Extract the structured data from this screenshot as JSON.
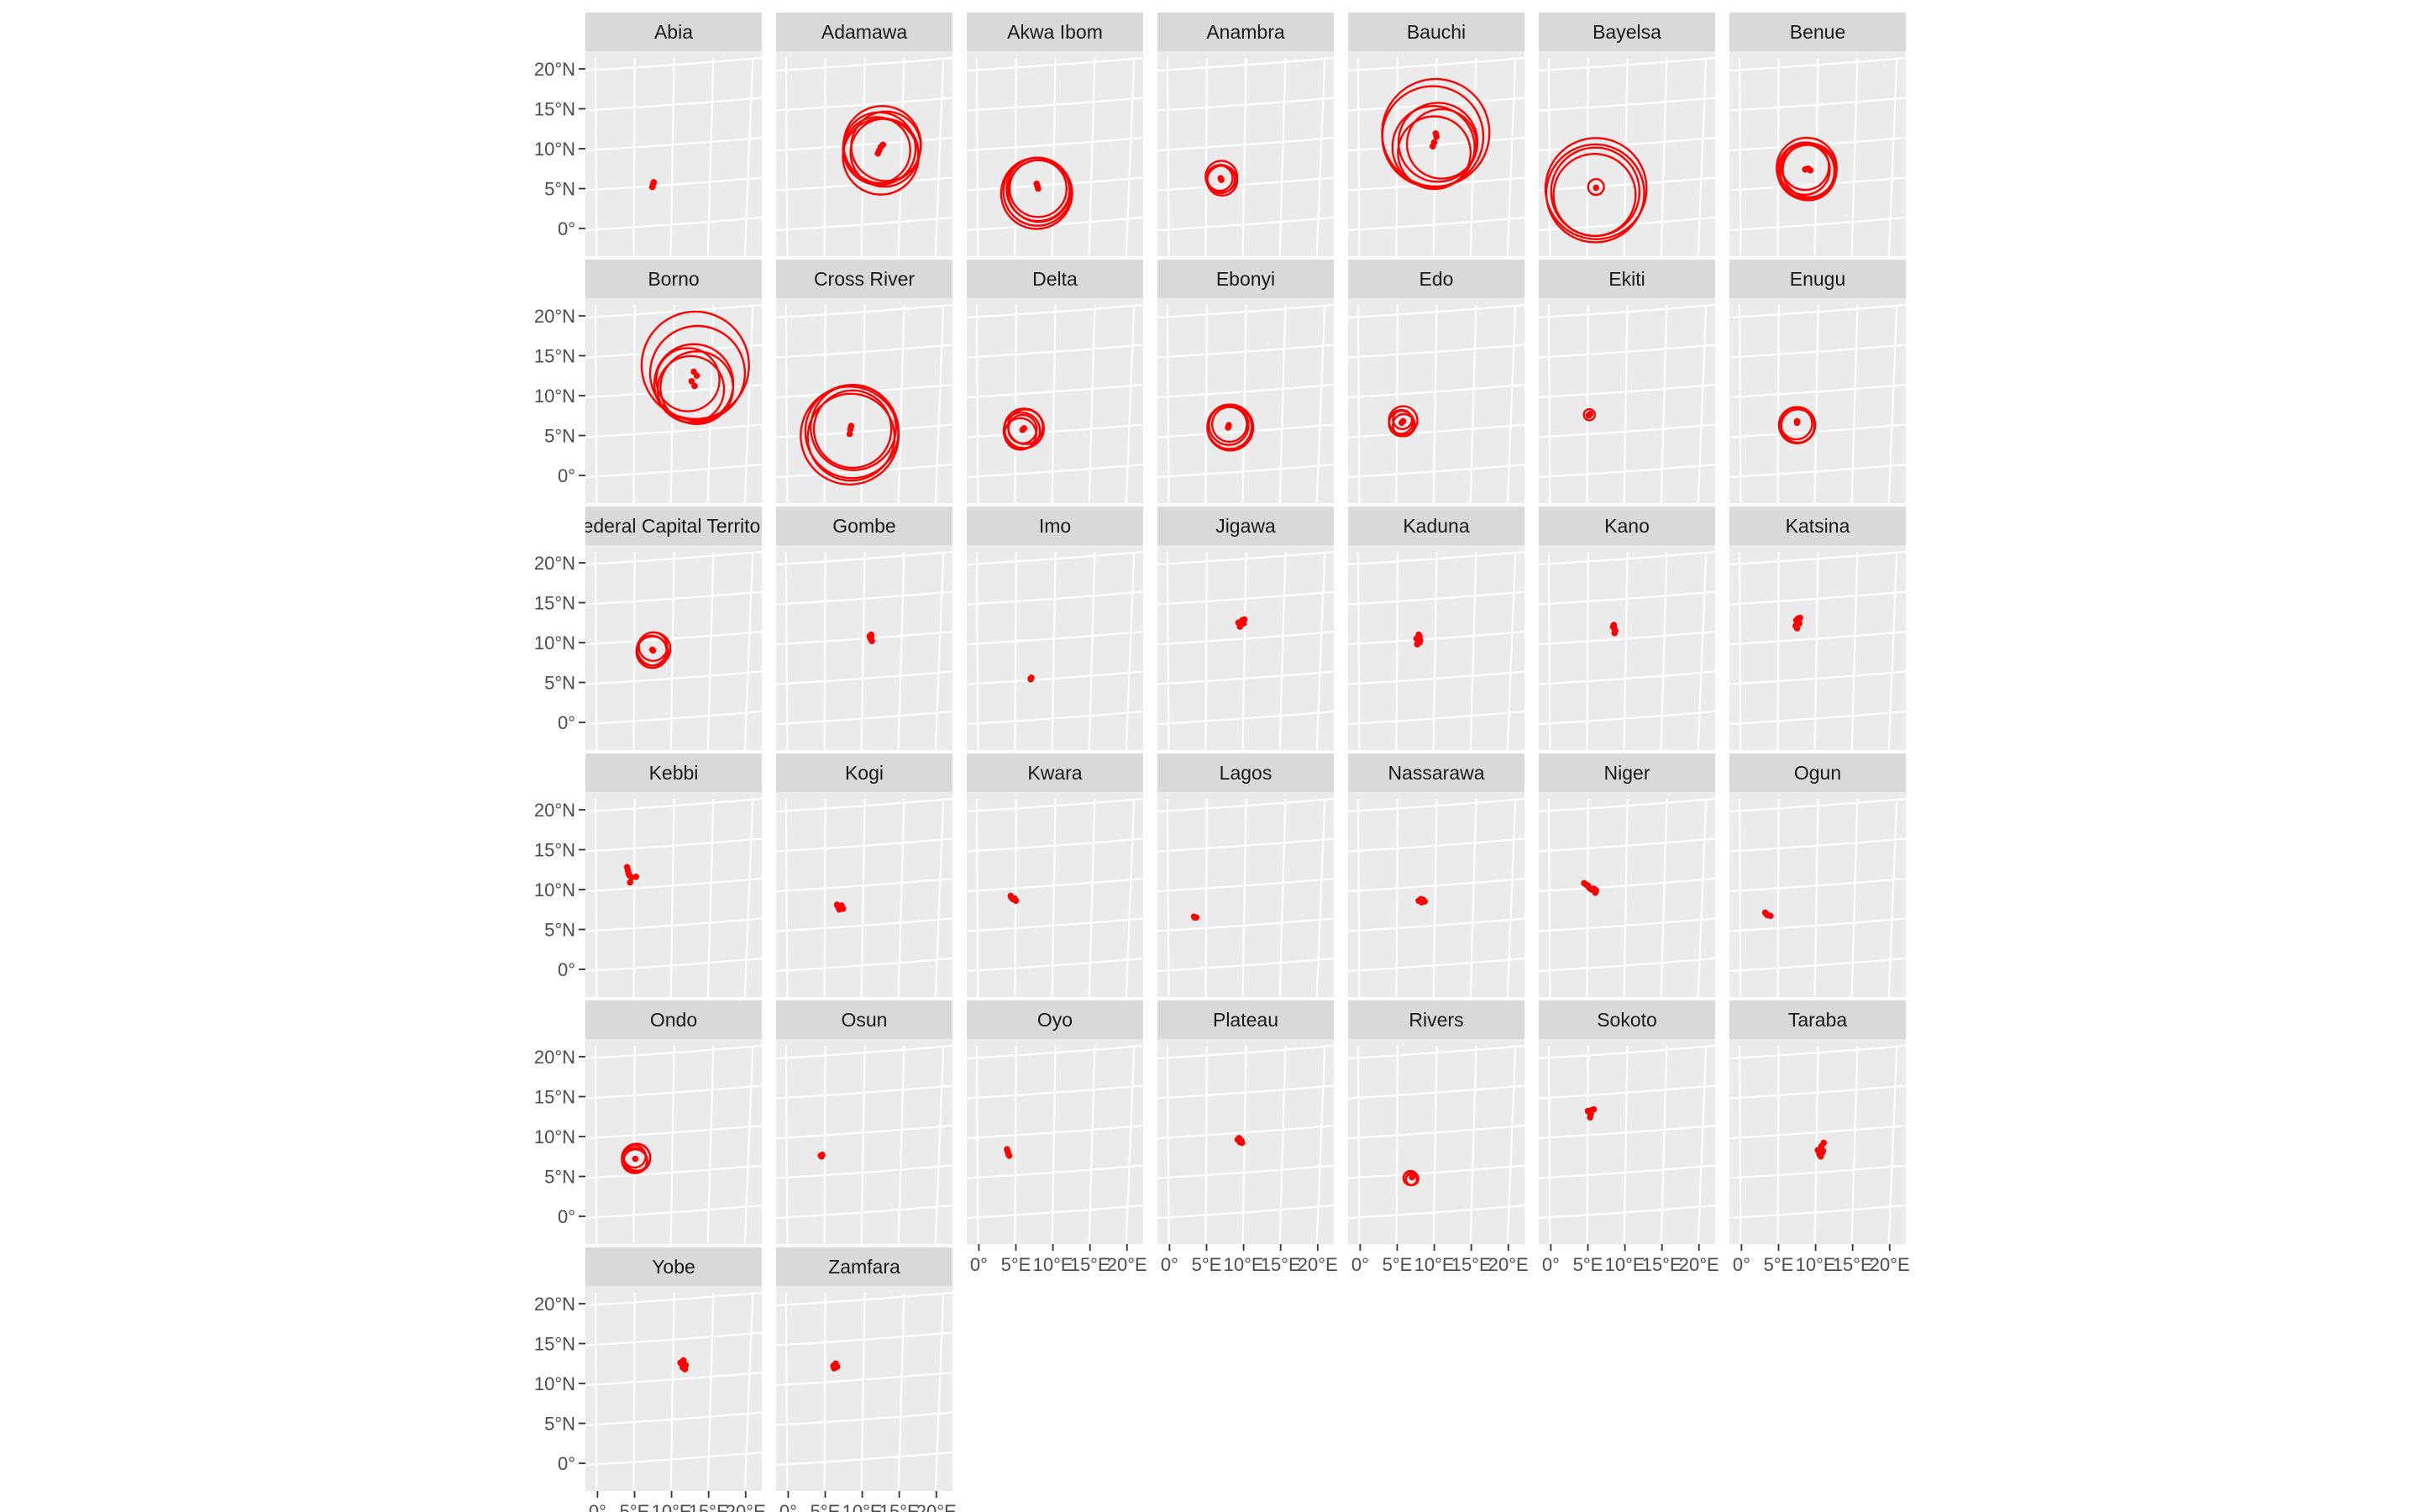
{
  "chart_data": {
    "type": "scatter",
    "title": "",
    "xlabel": "",
    "ylabel": "",
    "facet_layout": {
      "columns": 7,
      "rows": 6
    },
    "xlim": [
      0,
      20
    ],
    "ylim": [
      0,
      20
    ],
    "x_ticks": [
      0,
      5,
      10,
      15,
      20
    ],
    "x_tick_labels": [
      "0°",
      "5°E",
      "10°E",
      "15°E",
      "20°E"
    ],
    "y_ticks": [
      0,
      5,
      10,
      15,
      20
    ],
    "y_tick_labels": [
      "0°",
      "5°N",
      "10°N",
      "15°N",
      "20°N"
    ],
    "grid": true,
    "colors": {
      "marks": "#ff0000",
      "panel": "#ebebeb",
      "strip": "#d9d9d9",
      "grid": "#ffffff"
    },
    "panels": [
      {
        "name": "Abia",
        "circles": [],
        "points": [
          [
            7.5,
            5.5
          ],
          [
            7.6,
            5.8
          ],
          [
            7.4,
            5.2
          ]
        ]
      },
      {
        "name": "Adamawa",
        "circles": [
          [
            12.3,
            10.0,
            4.6
          ],
          [
            12.7,
            10.5,
            4.9
          ],
          [
            13.0,
            9.5,
            4.3
          ],
          [
            12.5,
            9.0,
            4.8
          ],
          [
            12.0,
            9.8,
            4.2
          ],
          [
            13.2,
            10.3,
            4.4
          ]
        ],
        "points": [
          [
            12.3,
            9.8
          ],
          [
            12.5,
            10.2
          ],
          [
            12.1,
            9.4
          ],
          [
            12.8,
            10.5
          ]
        ]
      },
      {
        "name": "Akwa Ibom",
        "circles": [
          [
            7.9,
            4.6,
            4.3
          ],
          [
            8.0,
            4.9,
            4.0
          ],
          [
            7.8,
            4.4,
            4.5
          ],
          [
            8.1,
            4.7,
            3.9
          ],
          [
            8.0,
            5.0,
            3.6
          ]
        ],
        "points": [
          [
            7.9,
            5.3
          ],
          [
            8.0,
            5.0
          ],
          [
            7.8,
            5.6
          ]
        ]
      },
      {
        "name": "Anambra",
        "circles": [
          [
            6.9,
            6.2,
            1.8
          ],
          [
            7.0,
            6.5,
            2.0
          ],
          [
            6.8,
            6.3,
            1.6
          ],
          [
            7.1,
            6.0,
            1.9
          ]
        ],
        "points": [
          [
            6.9,
            6.3
          ],
          [
            7.0,
            6.1
          ]
        ]
      },
      {
        "name": "Bauchi",
        "circles": [
          [
            9.8,
            11.5,
            6.4
          ],
          [
            10.2,
            12.0,
            6.8
          ],
          [
            9.9,
            10.2,
            5.2
          ],
          [
            10.0,
            9.5,
            4.6
          ],
          [
            10.5,
            10.8,
            5.0
          ],
          [
            11.0,
            10.6,
            4.4
          ]
        ],
        "points": [
          [
            10.3,
            11.5
          ],
          [
            10.0,
            10.8
          ],
          [
            10.2,
            11.9
          ],
          [
            9.8,
            10.3
          ]
        ]
      },
      {
        "name": "Bayelsa",
        "circles": [
          [
            6.0,
            4.4,
            6.2
          ],
          [
            6.0,
            4.6,
            5.6
          ],
          [
            6.1,
            5.0,
            6.4
          ],
          [
            5.9,
            4.2,
            5.2
          ],
          [
            6.1,
            5.2,
            1.0
          ]
        ],
        "points": [
          [
            6.1,
            5.1
          ]
        ]
      },
      {
        "name": "Benue",
        "circles": [
          [
            8.7,
            7.2,
            3.6
          ],
          [
            8.8,
            7.6,
            3.8
          ],
          [
            9.0,
            7.0,
            3.5
          ],
          [
            8.5,
            7.4,
            3.2
          ],
          [
            8.6,
            7.8,
            3.0
          ],
          [
            9.2,
            7.3,
            3.4
          ]
        ],
        "points": [
          [
            8.6,
            7.4
          ],
          [
            9.0,
            7.5
          ],
          [
            9.3,
            7.3
          ]
        ]
      },
      {
        "name": "Borno",
        "circles": [
          [
            13.2,
            13.8,
            6.8
          ],
          [
            13.5,
            12.8,
            6.0
          ],
          [
            13.0,
            11.5,
            5.0
          ],
          [
            12.6,
            10.8,
            4.2
          ],
          [
            13.4,
            11.0,
            4.6
          ],
          [
            12.2,
            12.0,
            4.0
          ]
        ],
        "points": [
          [
            13.0,
            13.0
          ],
          [
            13.4,
            12.5
          ],
          [
            12.7,
            11.8
          ],
          [
            13.1,
            11.2
          ]
        ]
      },
      {
        "name": "Cross River",
        "circles": [
          [
            8.6,
            5.5,
            5.9
          ],
          [
            8.3,
            5.0,
            6.2
          ],
          [
            8.8,
            6.0,
            5.4
          ],
          [
            8.5,
            4.8,
            5.5
          ],
          [
            8.7,
            5.8,
            4.9
          ]
        ],
        "points": [
          [
            8.5,
            6.2
          ],
          [
            8.4,
            5.8
          ],
          [
            8.3,
            5.2
          ]
        ]
      },
      {
        "name": "Delta",
        "circles": [
          [
            5.8,
            5.6,
            2.3
          ],
          [
            6.1,
            5.9,
            2.5
          ],
          [
            5.6,
            5.2,
            2.0
          ],
          [
            6.3,
            6.1,
            2.2
          ],
          [
            5.9,
            5.8,
            1.8
          ]
        ],
        "points": [
          [
            5.9,
            5.7
          ],
          [
            6.1,
            5.9
          ]
        ]
      },
      {
        "name": "Ebonyi",
        "circles": [
          [
            8.1,
            6.1,
            2.8
          ],
          [
            8.0,
            6.3,
            2.5
          ],
          [
            8.2,
            6.0,
            2.9
          ],
          [
            8.1,
            6.4,
            2.2
          ]
        ],
        "points": [
          [
            8.0,
            6.3
          ],
          [
            7.9,
            6.0
          ]
        ]
      },
      {
        "name": "Edo",
        "circles": [
          [
            5.6,
            6.5,
            1.6
          ],
          [
            5.8,
            6.9,
            1.8
          ],
          [
            5.5,
            6.7,
            1.5
          ],
          [
            5.9,
            6.3,
            1.4
          ],
          [
            5.7,
            7.0,
            1.2
          ]
        ],
        "points": [
          [
            5.6,
            6.6
          ],
          [
            5.8,
            6.8
          ]
        ]
      },
      {
        "name": "Ekiti",
        "circles": [
          [
            5.2,
            7.6,
            0.7
          ]
        ],
        "points": [
          [
            5.2,
            7.6
          ],
          [
            5.3,
            7.7
          ],
          [
            5.1,
            7.5
          ]
        ]
      },
      {
        "name": "Enugu",
        "circles": [
          [
            7.5,
            6.3,
            2.3
          ],
          [
            7.4,
            6.5,
            2.0
          ],
          [
            7.6,
            6.2,
            2.1
          ]
        ],
        "points": [
          [
            7.5,
            6.6
          ],
          [
            7.5,
            6.8
          ]
        ]
      },
      {
        "name": "Federal Capital Territory",
        "circles": [
          [
            7.4,
            8.8,
            2.0
          ],
          [
            7.6,
            9.2,
            2.1
          ],
          [
            7.3,
            9.0,
            1.9
          ],
          [
            7.5,
            9.5,
            1.8
          ]
        ],
        "points": [
          [
            7.4,
            9.1
          ],
          [
            7.5,
            9.0
          ]
        ]
      },
      {
        "name": "Gombe",
        "circles": [],
        "points": [
          [
            11.1,
            10.5
          ],
          [
            11.2,
            11.0
          ],
          [
            11.3,
            10.2
          ],
          [
            11.0,
            10.8
          ],
          [
            11.2,
            10.7
          ]
        ]
      },
      {
        "name": "Imo",
        "circles": [],
        "points": [
          [
            7.0,
            5.4
          ],
          [
            7.1,
            5.6
          ],
          [
            7.0,
            5.5
          ]
        ]
      },
      {
        "name": "Jigawa",
        "circles": [],
        "points": [
          [
            9.3,
            12.5
          ],
          [
            9.8,
            12.8
          ],
          [
            10.0,
            12.4
          ],
          [
            9.5,
            12.0
          ],
          [
            10.1,
            12.9
          ],
          [
            9.6,
            12.3
          ]
        ]
      },
      {
        "name": "Kaduna",
        "circles": [],
        "points": [
          [
            7.6,
            10.5
          ],
          [
            7.9,
            11.0
          ],
          [
            8.0,
            10.0
          ],
          [
            7.8,
            10.6
          ],
          [
            8.1,
            10.3
          ],
          [
            7.7,
            9.8
          ],
          [
            8.0,
            10.8
          ]
        ]
      },
      {
        "name": "Kano",
        "circles": [],
        "points": [
          [
            8.4,
            12.0
          ],
          [
            8.6,
            11.7
          ],
          [
            8.5,
            12.2
          ],
          [
            8.7,
            11.5
          ],
          [
            8.6,
            11.2
          ]
        ]
      },
      {
        "name": "Katsina",
        "circles": [],
        "points": [
          [
            7.4,
            12.8
          ],
          [
            7.6,
            13.0
          ],
          [
            7.8,
            12.4
          ],
          [
            7.3,
            12.1
          ],
          [
            7.5,
            11.8
          ],
          [
            7.9,
            13.1
          ]
        ]
      },
      {
        "name": "Kebbi",
        "circles": [],
        "points": [
          [
            4.1,
            12.4
          ],
          [
            4.3,
            11.8
          ],
          [
            4.6,
            11.5
          ],
          [
            4.0,
            12.8
          ],
          [
            5.2,
            11.6
          ],
          [
            4.4,
            10.9
          ],
          [
            4.2,
            12.0
          ]
        ]
      },
      {
        "name": "Kogi",
        "circles": [],
        "points": [
          [
            6.6,
            8.1
          ],
          [
            7.0,
            7.8
          ],
          [
            7.4,
            7.6
          ],
          [
            6.9,
            7.5
          ],
          [
            7.2,
            8.0
          ],
          [
            6.7,
            7.9
          ]
        ]
      },
      {
        "name": "Kwara",
        "circles": [],
        "points": [
          [
            4.3,
            9.2
          ],
          [
            4.6,
            8.8
          ],
          [
            5.0,
            8.6
          ],
          [
            4.4,
            9.0
          ],
          [
            4.8,
            8.9
          ]
        ]
      },
      {
        "name": "Lagos",
        "circles": [],
        "points": [
          [
            3.4,
            6.5
          ],
          [
            3.6,
            6.5
          ],
          [
            3.3,
            6.6
          ]
        ]
      },
      {
        "name": "Nassarawa",
        "circles": [],
        "points": [
          [
            7.9,
            8.6
          ],
          [
            8.2,
            8.8
          ],
          [
            8.5,
            8.7
          ],
          [
            8.7,
            8.5
          ],
          [
            8.3,
            8.4
          ]
        ]
      },
      {
        "name": "Niger",
        "circles": [],
        "points": [
          [
            4.5,
            10.8
          ],
          [
            5.0,
            10.5
          ],
          [
            5.5,
            10.0
          ],
          [
            6.0,
            9.6
          ],
          [
            5.2,
            10.2
          ],
          [
            5.8,
            10.1
          ],
          [
            4.8,
            10.6
          ],
          [
            6.1,
            9.9
          ]
        ]
      },
      {
        "name": "Ogun",
        "circles": [],
        "points": [
          [
            3.2,
            7.1
          ],
          [
            3.5,
            6.8
          ],
          [
            3.9,
            6.7
          ],
          [
            3.4,
            6.9
          ]
        ]
      },
      {
        "name": "Ondo",
        "circles": [
          [
            5.0,
            7.0,
            1.6
          ],
          [
            5.2,
            7.3,
            1.8
          ],
          [
            5.1,
            6.9,
            1.5
          ],
          [
            5.3,
            7.4,
            1.7
          ],
          [
            5.0,
            7.5,
            1.4
          ]
        ],
        "points": [
          [
            5.1,
            7.2
          ]
        ]
      },
      {
        "name": "Osun",
        "circles": [],
        "points": [
          [
            4.4,
            7.6
          ],
          [
            4.6,
            7.7
          ],
          [
            4.5,
            7.5
          ]
        ]
      },
      {
        "name": "Oyo",
        "circles": [],
        "points": [
          [
            3.9,
            8.1
          ],
          [
            4.0,
            7.8
          ],
          [
            3.8,
            8.4
          ],
          [
            4.1,
            7.6
          ]
        ]
      },
      {
        "name": "Plateau",
        "circles": [],
        "points": [
          [
            9.2,
            9.6
          ],
          [
            9.5,
            9.3
          ],
          [
            9.8,
            9.2
          ],
          [
            9.4,
            9.8
          ],
          [
            9.7,
            9.5
          ]
        ]
      },
      {
        "name": "Rivers",
        "circles": [
          [
            6.8,
            4.8,
            0.9
          ],
          [
            7.0,
            4.7,
            0.8
          ],
          [
            6.9,
            4.6,
            0.7
          ]
        ],
        "points": [
          [
            7.0,
            4.9
          ]
        ]
      },
      {
        "name": "Sokoto",
        "circles": [],
        "points": [
          [
            5.2,
            13.0
          ],
          [
            5.5,
            13.3
          ],
          [
            5.8,
            13.4
          ],
          [
            5.4,
            12.8
          ],
          [
            5.0,
            13.2
          ],
          [
            5.3,
            12.4
          ]
        ]
      },
      {
        "name": "Taraba",
        "circles": [],
        "points": [
          [
            10.8,
            8.8
          ],
          [
            11.0,
            8.2
          ],
          [
            10.5,
            7.8
          ],
          [
            10.3,
            8.3
          ],
          [
            11.1,
            9.2
          ],
          [
            10.7,
            7.5
          ],
          [
            10.9,
            8.0
          ]
        ]
      },
      {
        "name": "Yobe",
        "circles": [],
        "points": [
          [
            11.2,
            12.6
          ],
          [
            11.6,
            12.9
          ],
          [
            11.9,
            12.3
          ],
          [
            11.5,
            12.0
          ],
          [
            11.8,
            11.8
          ],
          [
            11.4,
            12.4
          ]
        ]
      },
      {
        "name": "Zamfara",
        "circles": [],
        "points": [
          [
            6.1,
            12.2
          ],
          [
            6.4,
            12.5
          ],
          [
            6.6,
            12.1
          ],
          [
            6.2,
            11.9
          ],
          [
            6.5,
            12.3
          ]
        ]
      }
    ]
  }
}
